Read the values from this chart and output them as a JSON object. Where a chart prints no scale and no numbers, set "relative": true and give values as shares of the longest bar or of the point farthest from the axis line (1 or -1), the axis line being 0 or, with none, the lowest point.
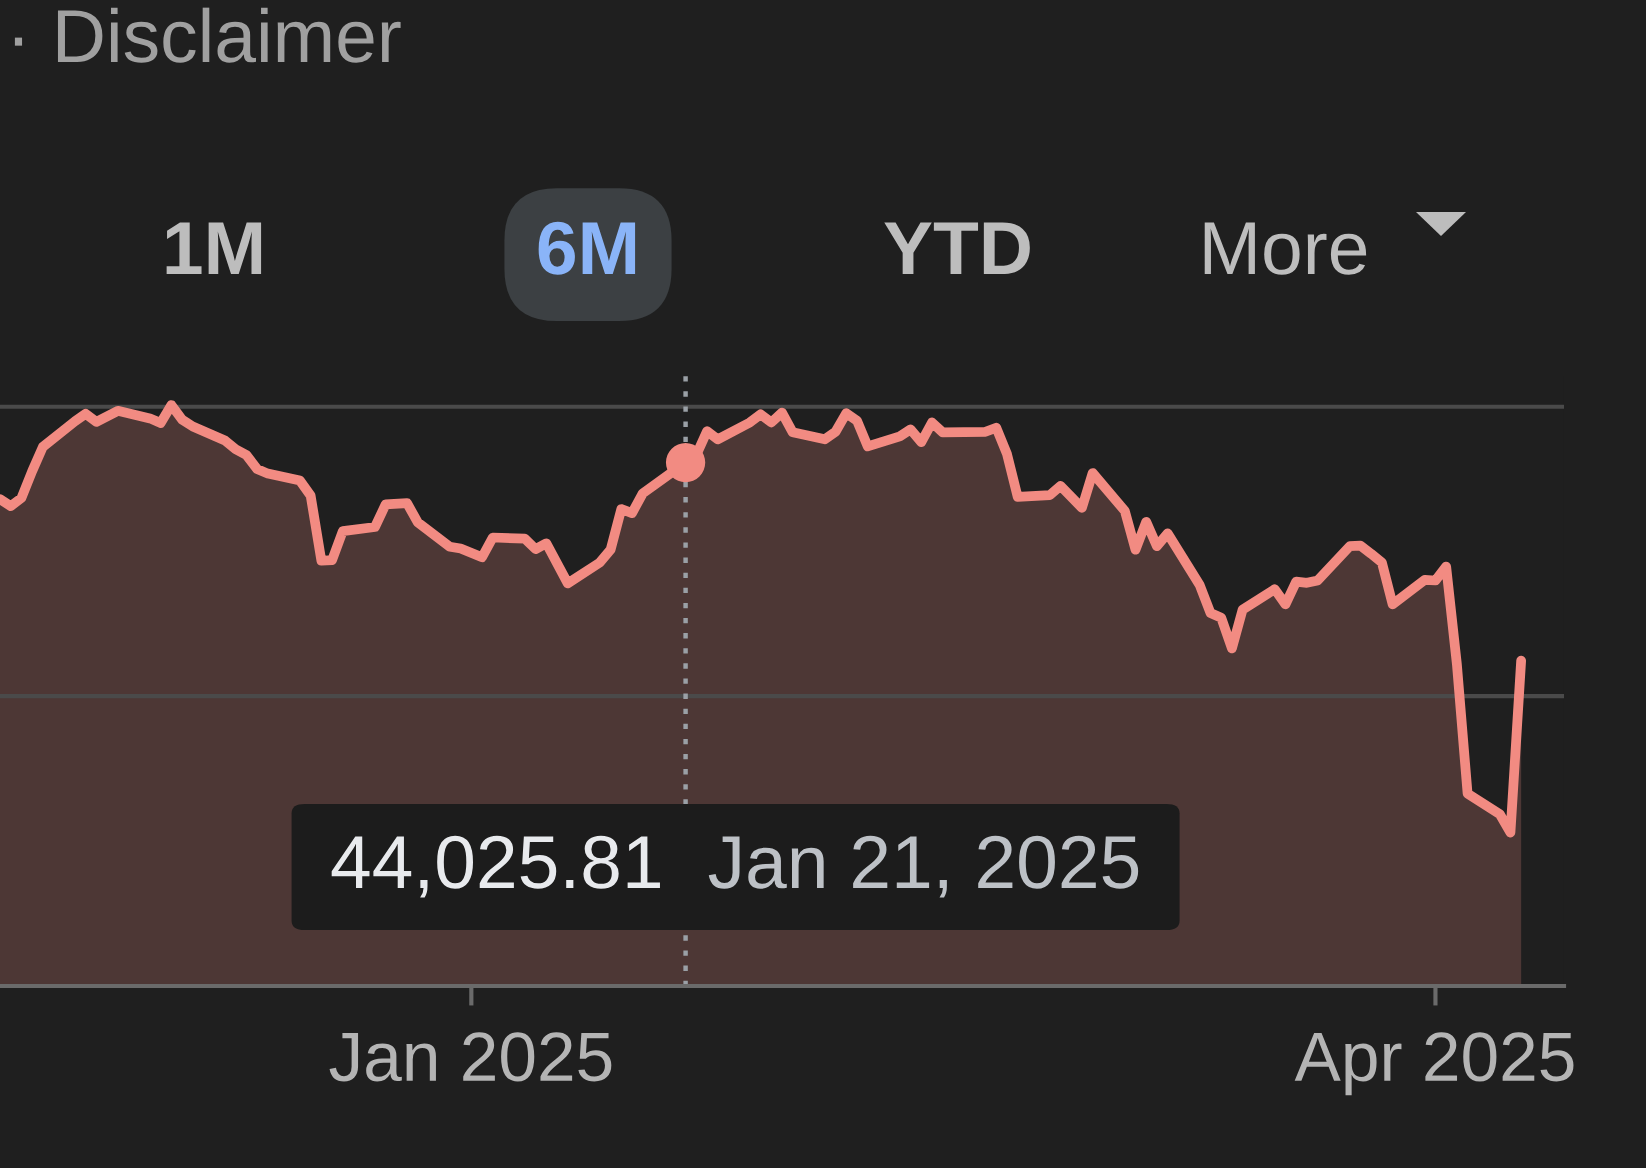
{
  "chart_data": {
    "type": "area",
    "relative": true,
    "series": [
      {
        "color": "#f28b82",
        "x": [
          "2024-11-18",
          "2024-11-19",
          "2024-11-20",
          "2024-11-21",
          "2024-11-22",
          "2024-11-25",
          "2024-11-26",
          "2024-11-27",
          "2024-11-29",
          "2024-12-02",
          "2024-12-03",
          "2024-12-04",
          "2024-12-05",
          "2024-12-06",
          "2024-12-09",
          "2024-12-10",
          "2024-12-11",
          "2024-12-12",
          "2024-12-13",
          "2024-12-16",
          "2024-12-17",
          "2024-12-18",
          "2024-12-19",
          "2024-12-20",
          "2024-12-23",
          "2024-12-24",
          "2024-12-26",
          "2024-12-27",
          "2024-12-30",
          "2024-12-31",
          "2025-01-02",
          "2025-01-03",
          "2025-01-06",
          "2025-01-07",
          "2025-01-08",
          "2025-01-10",
          "2025-01-13",
          "2025-01-14",
          "2025-01-15",
          "2025-01-16",
          "2025-01-17",
          "2025-01-21",
          "2025-01-22",
          "2025-01-23",
          "2025-01-24",
          "2025-01-27",
          "2025-01-28",
          "2025-01-29",
          "2025-01-30",
          "2025-01-31",
          "2025-02-03",
          "2025-02-04",
          "2025-02-05",
          "2025-02-06",
          "2025-02-07",
          "2025-02-10",
          "2025-02-11",
          "2025-02-12",
          "2025-02-13",
          "2025-02-14",
          "2025-02-18",
          "2025-02-19",
          "2025-02-20",
          "2025-02-21",
          "2025-02-24",
          "2025-02-25",
          "2025-02-26",
          "2025-02-27",
          "2025-02-28",
          "2025-03-03",
          "2025-03-04",
          "2025-03-05",
          "2025-03-06",
          "2025-03-07",
          "2025-03-10",
          "2025-03-11",
          "2025-03-12",
          "2025-03-13",
          "2025-03-14",
          "2025-03-17",
          "2025-03-18",
          "2025-03-19",
          "2025-03-20",
          "2025-03-21",
          "2025-03-24",
          "2025-03-25",
          "2025-03-26",
          "2025-03-27",
          "2025-03-28",
          "2025-03-31",
          "2025-04-01",
          "2025-04-02",
          "2025-04-03",
          "2025-04-04",
          "2025-04-07",
          "2025-04-08",
          "2025-04-09"
        ],
        "values": [
          0.838,
          0.826,
          0.84,
          0.886,
          0.928,
          0.972,
          0.985,
          0.971,
          0.99,
          0.977,
          0.969,
          1.0,
          0.975,
          0.963,
          0.939,
          0.924,
          0.914,
          0.89,
          0.882,
          0.87,
          0.844,
          0.732,
          0.733,
          0.783,
          0.79,
          0.829,
          0.831,
          0.798,
          0.756,
          0.753,
          0.738,
          0.772,
          0.77,
          0.752,
          0.762,
          0.693,
          0.729,
          0.751,
          0.821,
          0.814,
          0.848,
          0.901,
          0.914,
          0.955,
          0.941,
          0.97,
          0.984,
          0.97,
          0.987,
          0.953,
          0.941,
          0.954,
          0.986,
          0.973,
          0.929,
          0.946,
          0.958,
          0.936,
          0.97,
          0.953,
          0.954,
          0.961,
          0.916,
          0.842,
          0.845,
          0.861,
          0.842,
          0.823,
          0.883,
          0.818,
          0.751,
          0.799,
          0.757,
          0.779,
          0.69,
          0.642,
          0.634,
          0.581,
          0.648,
          0.683,
          0.657,
          0.696,
          0.694,
          0.698,
          0.757,
          0.758,
          0.744,
          0.729,
          0.657,
          0.699,
          0.698,
          0.722,
          0.554,
          0.331,
          0.296,
          0.264,
          0.56
        ]
      },
      {
        "type": "scatter",
        "color": "#f28b82",
        "x": [
          "2025-01-21"
        ],
        "values": [
          0.901
        ]
      }
    ],
    "xlim": [
      "2024-11-18",
      "2025-04-13"
    ],
    "xticks": [
      {
        "value": "2025-01-01",
        "label": "Jan 2025"
      },
      {
        "value": "2025-04-01",
        "label": "Apr 2025"
      }
    ],
    "tick_labels": "x",
    "ref_lines": [
      {
        "axis": "x",
        "value": "2025-01-21",
        "color": "#9aa0a6",
        "line_style": "dotted"
      },
      {
        "axis": "y",
        "value": 0.499,
        "color": "#4a4a4a",
        "line_style": "solid"
      },
      {
        "axis": "y",
        "value": 0.997,
        "color": "#4a4a4a",
        "line_style": "solid"
      }
    ],
    "annotations": [
      "· Disclaimer",
      "1M",
      "6M",
      "YTD",
      "More",
      "44,025.81",
      "Jan 21, 2025"
    ]
  }
}
